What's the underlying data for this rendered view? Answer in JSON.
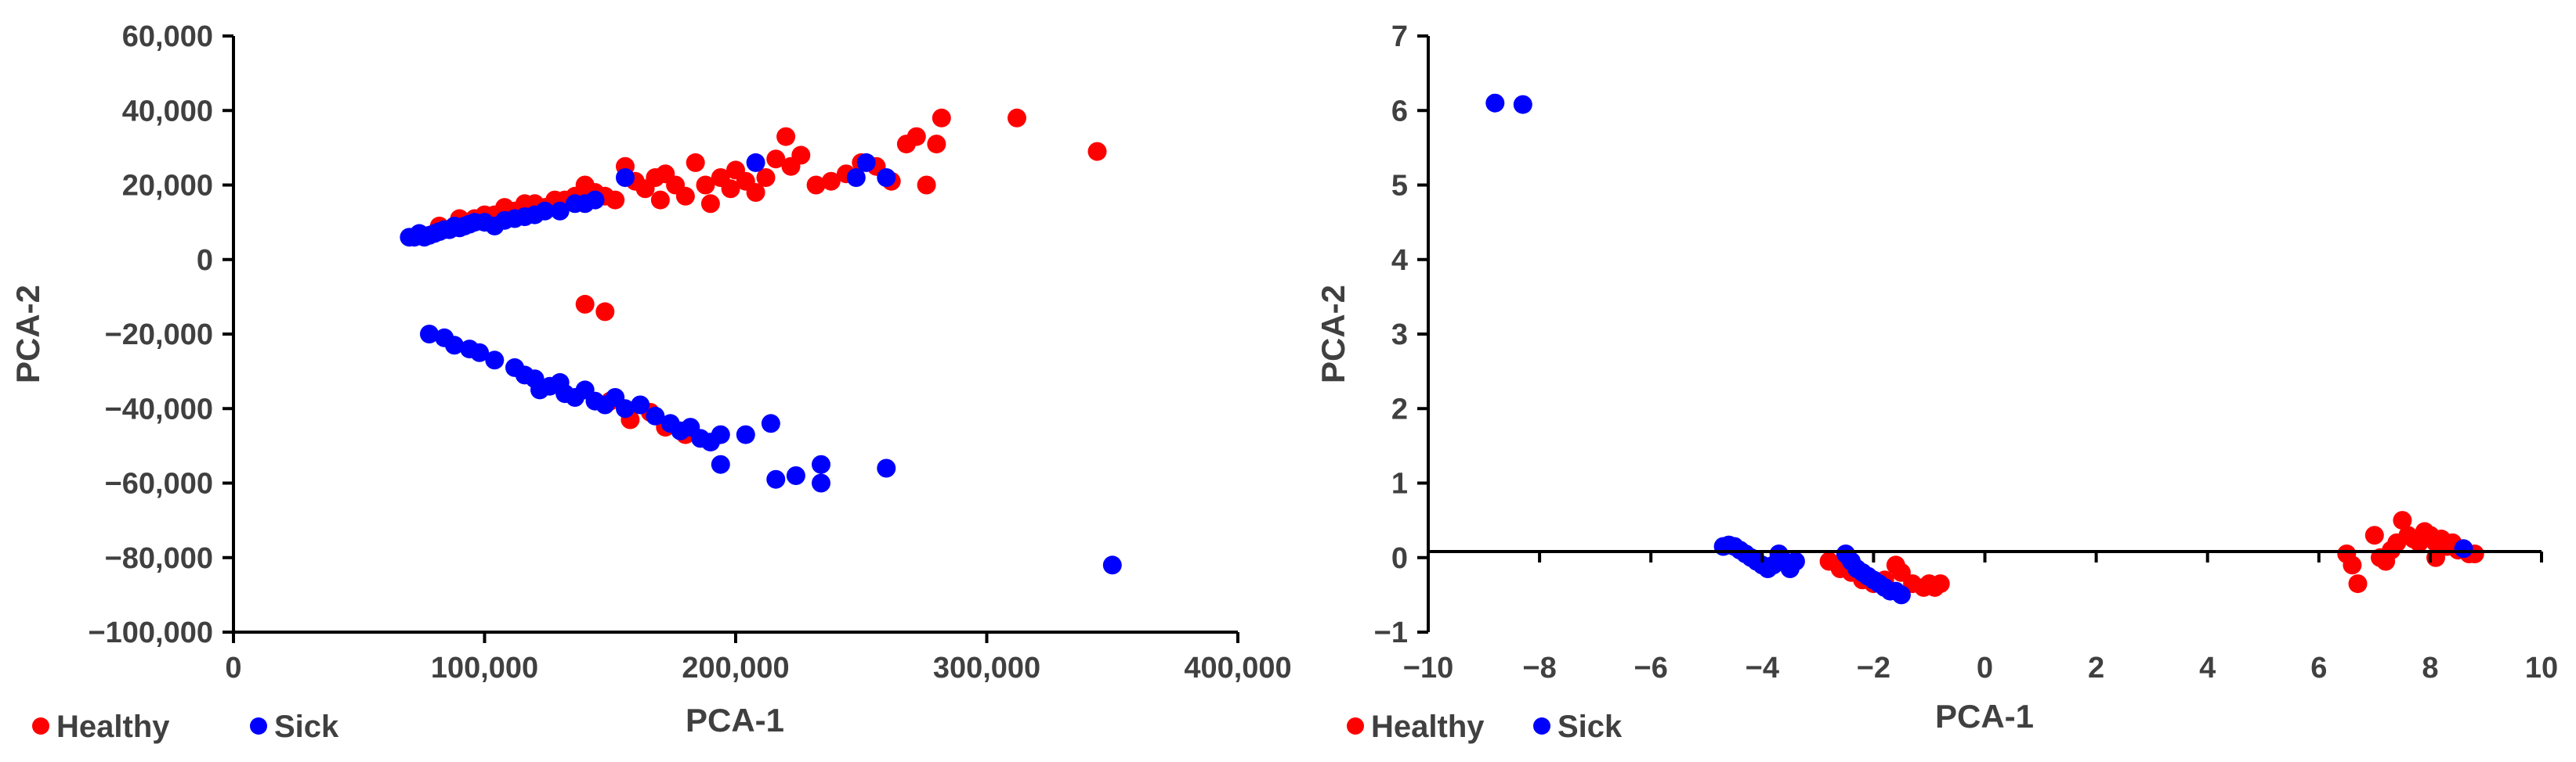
{
  "colors": {
    "healthy": "#ff0000",
    "sick": "#0000ff",
    "text": "#404040",
    "axis": "#000000"
  },
  "chart_data": [
    {
      "type": "scatter",
      "xlabel": "PCA-1",
      "ylabel": "PCA-2",
      "xlim": [
        0,
        400000
      ],
      "ylim": [
        -100000,
        60000
      ],
      "xticks": [
        0,
        100000,
        200000,
        300000,
        400000
      ],
      "xtick_labels": [
        "0",
        "100,000",
        "200,000",
        "300,000",
        "400,000"
      ],
      "yticks": [
        60000,
        40000,
        20000,
        0,
        -20000,
        -40000,
        -60000,
        -80000,
        -100000
      ],
      "ytick_labels": [
        "60,000",
        "40,000",
        "20,000",
        "0",
        "−20,000",
        "−40,000",
        "−60,000",
        "−80,000",
        "−100,000"
      ],
      "legend": {
        "position": "bottom-left",
        "entries": [
          "Healthy",
          "Sick"
        ]
      },
      "series": [
        {
          "name": "Healthy",
          "color": "#ff0000",
          "points": [
            [
              82000,
              9000
            ],
            [
              90000,
              11000
            ],
            [
              96000,
              11000
            ],
            [
              100000,
              12000
            ],
            [
              104000,
              12000
            ],
            [
              108000,
              14000
            ],
            [
              112000,
              13000
            ],
            [
              116000,
              15000
            ],
            [
              120000,
              15000
            ],
            [
              124000,
              14000
            ],
            [
              128000,
              16000
            ],
            [
              132000,
              16000
            ],
            [
              136000,
              17000
            ],
            [
              140000,
              20000
            ],
            [
              144000,
              18000
            ],
            [
              148000,
              17000
            ],
            [
              152000,
              16000
            ],
            [
              156000,
              25000
            ],
            [
              160000,
              21000
            ],
            [
              164000,
              19000
            ],
            [
              168000,
              22000
            ],
            [
              170000,
              16000
            ],
            [
              172000,
              23000
            ],
            [
              176000,
              20000
            ],
            [
              180000,
              17000
            ],
            [
              184000,
              26000
            ],
            [
              188000,
              20000
            ],
            [
              190000,
              15000
            ],
            [
              194000,
              22000
            ],
            [
              198000,
              19000
            ],
            [
              200000,
              24000
            ],
            [
              204000,
              21000
            ],
            [
              208000,
              18000
            ],
            [
              212000,
              22000
            ],
            [
              216000,
              27000
            ],
            [
              220000,
              33000
            ],
            [
              222000,
              25000
            ],
            [
              226000,
              28000
            ],
            [
              232000,
              20000
            ],
            [
              238000,
              21000
            ],
            [
              244000,
              23000
            ],
            [
              250000,
              26000
            ],
            [
              256000,
              25000
            ],
            [
              262000,
              21000
            ],
            [
              268000,
              31000
            ],
            [
              272000,
              33000
            ],
            [
              276000,
              20000
            ],
            [
              280000,
              31000
            ],
            [
              282000,
              38000
            ],
            [
              312000,
              38000
            ],
            [
              344000,
              29000
            ],
            [
              140000,
              -12000
            ],
            [
              148000,
              -14000
            ],
            [
              150000,
              -38000
            ],
            [
              158000,
              -43000
            ],
            [
              166000,
              -41000
            ],
            [
              172000,
              -45000
            ],
            [
              180000,
              -47000
            ]
          ]
        },
        {
          "name": "Sick",
          "color": "#0000ff",
          "points": [
            [
              70000,
              6000
            ],
            [
              72000,
              6000
            ],
            [
              74000,
              7000
            ],
            [
              76000,
              6000
            ],
            [
              78000,
              6500
            ],
            [
              80000,
              7000
            ],
            [
              82000,
              7500
            ],
            [
              84000,
              8000
            ],
            [
              86000,
              8000
            ],
            [
              88000,
              9000
            ],
            [
              90000,
              8500
            ],
            [
              92000,
              9000
            ],
            [
              94000,
              9500
            ],
            [
              96000,
              10000
            ],
            [
              100000,
              10000
            ],
            [
              104000,
              9000
            ],
            [
              108000,
              10500
            ],
            [
              112000,
              11000
            ],
            [
              116000,
              11500
            ],
            [
              120000,
              12000
            ],
            [
              124000,
              13000
            ],
            [
              130000,
              13000
            ],
            [
              136000,
              15000
            ],
            [
              140000,
              15000
            ],
            [
              144000,
              16000
            ],
            [
              156000,
              22000
            ],
            [
              208000,
              26000
            ],
            [
              248000,
              22000
            ],
            [
              252000,
              26000
            ],
            [
              260000,
              22000
            ],
            [
              78000,
              -20000
            ],
            [
              84000,
              -21000
            ],
            [
              88000,
              -23000
            ],
            [
              94000,
              -24000
            ],
            [
              98000,
              -25000
            ],
            [
              104000,
              -27000
            ],
            [
              112000,
              -29000
            ],
            [
              116000,
              -31000
            ],
            [
              120000,
              -32000
            ],
            [
              122000,
              -35000
            ],
            [
              126000,
              -34000
            ],
            [
              130000,
              -33000
            ],
            [
              132000,
              -36000
            ],
            [
              136000,
              -37000
            ],
            [
              140000,
              -35000
            ],
            [
              144000,
              -38000
            ],
            [
              148000,
              -39000
            ],
            [
              152000,
              -37000
            ],
            [
              156000,
              -40000
            ],
            [
              162000,
              -39000
            ],
            [
              168000,
              -42000
            ],
            [
              174000,
              -44000
            ],
            [
              178000,
              -46000
            ],
            [
              182000,
              -45000
            ],
            [
              186000,
              -48000
            ],
            [
              190000,
              -49000
            ],
            [
              194000,
              -47000
            ],
            [
              194000,
              -55000
            ],
            [
              204000,
              -47000
            ],
            [
              214000,
              -44000
            ],
            [
              216000,
              -59000
            ],
            [
              224000,
              -58000
            ],
            [
              234000,
              -55000
            ],
            [
              234000,
              -60000
            ],
            [
              260000,
              -56000
            ],
            [
              350000,
              -82000
            ]
          ]
        }
      ]
    },
    {
      "type": "scatter",
      "xlabel": "PCA-1",
      "ylabel": "PCA-2",
      "xlim": [
        -10,
        10
      ],
      "ylim": [
        -1,
        7
      ],
      "xticks": [
        -10,
        -8,
        -6,
        -4,
        -2,
        0,
        2,
        4,
        6,
        8,
        10
      ],
      "xtick_labels": [
        "−10",
        "−8",
        "−6",
        "−4",
        "−2",
        "0",
        "2",
        "4",
        "6",
        "8",
        "10"
      ],
      "yticks": [
        7,
        6,
        5,
        4,
        3,
        2,
        1,
        0,
        -1
      ],
      "ytick_labels": [
        "7",
        "6",
        "5",
        "4",
        "3",
        "2",
        "1",
        "0",
        "−1"
      ],
      "legend": {
        "position": "bottom-left",
        "entries": [
          "Healthy",
          "Sick"
        ]
      },
      "series": [
        {
          "name": "Healthy",
          "color": "#ff0000",
          "points": [
            [
              -2.8,
              -0.05
            ],
            [
              -2.6,
              -0.15
            ],
            [
              -2.4,
              -0.2
            ],
            [
              -2.2,
              -0.3
            ],
            [
              -2.0,
              -0.35
            ],
            [
              -1.8,
              -0.3
            ],
            [
              -1.6,
              -0.1
            ],
            [
              -1.5,
              -0.2
            ],
            [
              -1.3,
              -0.35
            ],
            [
              -1.1,
              -0.4
            ],
            [
              -1.0,
              -0.35
            ],
            [
              -0.9,
              -0.4
            ],
            [
              -0.8,
              -0.35
            ],
            [
              6.5,
              0.05
            ],
            [
              6.6,
              -0.1
            ],
            [
              6.7,
              -0.35
            ],
            [
              7.0,
              0.3
            ],
            [
              7.1,
              0.0
            ],
            [
              7.2,
              -0.05
            ],
            [
              7.3,
              0.1
            ],
            [
              7.4,
              0.2
            ],
            [
              7.5,
              0.5
            ],
            [
              7.6,
              0.3
            ],
            [
              7.7,
              0.25
            ],
            [
              7.8,
              0.2
            ],
            [
              7.9,
              0.35
            ],
            [
              8.0,
              0.3
            ],
            [
              8.1,
              0.2
            ],
            [
              8.1,
              0.0
            ],
            [
              8.2,
              0.25
            ],
            [
              8.3,
              0.15
            ],
            [
              8.4,
              0.2
            ],
            [
              8.5,
              0.1
            ],
            [
              8.6,
              0.1
            ],
            [
              8.7,
              0.05
            ],
            [
              8.8,
              0.05
            ]
          ]
        },
        {
          "name": "Sick",
          "color": "#0000ff",
          "points": [
            [
              -8.8,
              6.1
            ],
            [
              -8.3,
              6.08
            ],
            [
              -4.7,
              0.15
            ],
            [
              -4.6,
              0.17
            ],
            [
              -4.5,
              0.15
            ],
            [
              -4.4,
              0.1
            ],
            [
              -4.3,
              0.05
            ],
            [
              -4.2,
              0.0
            ],
            [
              -4.1,
              -0.05
            ],
            [
              -4.0,
              -0.1
            ],
            [
              -3.9,
              -0.15
            ],
            [
              -3.8,
              -0.1
            ],
            [
              -3.7,
              0.05
            ],
            [
              -3.6,
              -0.05
            ],
            [
              -3.5,
              -0.15
            ],
            [
              -3.4,
              -0.05
            ],
            [
              -2.5,
              0.05
            ],
            [
              -2.4,
              -0.05
            ],
            [
              -2.3,
              -0.15
            ],
            [
              -2.2,
              -0.2
            ],
            [
              -2.1,
              -0.25
            ],
            [
              -2.0,
              -0.3
            ],
            [
              -1.9,
              -0.35
            ],
            [
              -1.8,
              -0.4
            ],
            [
              -1.7,
              -0.45
            ],
            [
              -1.6,
              -0.45
            ],
            [
              -1.5,
              -0.5
            ],
            [
              8.6,
              0.12
            ]
          ]
        }
      ]
    }
  ]
}
